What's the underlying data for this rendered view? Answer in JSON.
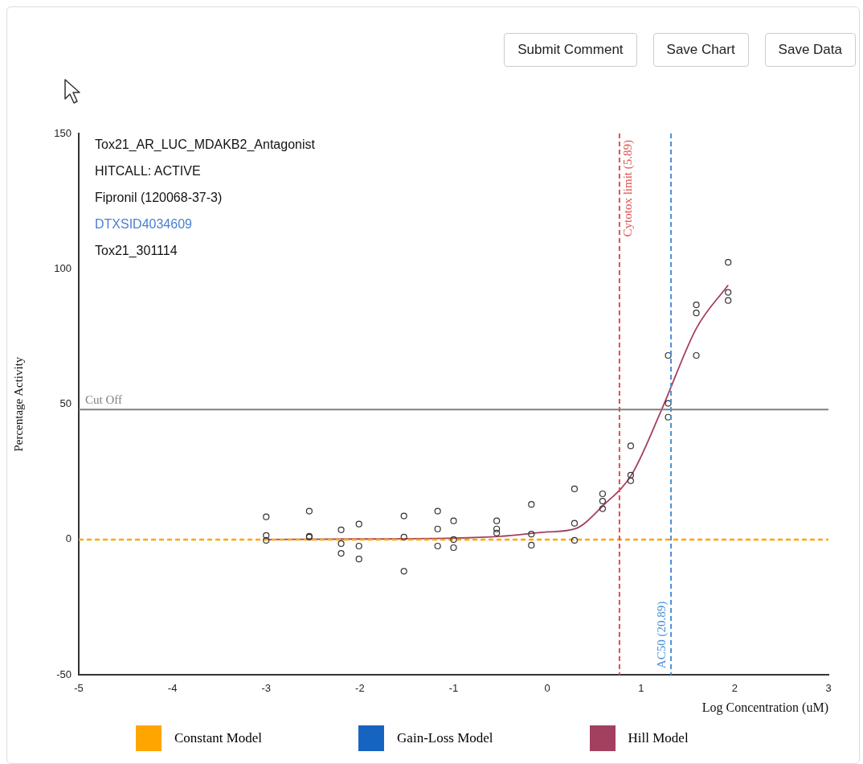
{
  "chart_data": {
    "type": "scatter",
    "title": "Tox21_AR_LUC_MDAKB2_Antagonist",
    "xlabel": "Log Concentration (uM)",
    "ylabel": "Percentage Activity",
    "annotations": [
      "HITCALL: ACTIVE",
      "Fipronil (120068-37-3)",
      "DTXSID4034609",
      "Tox21_301114",
      "Submit Comment",
      "Save Chart",
      "Save Data"
    ],
    "xlim": [
      -5,
      3
    ],
    "xticks": [
      -5,
      -4,
      -3,
      -2,
      -1,
      0,
      1,
      2,
      3
    ],
    "ylim": [
      -50,
      150
    ],
    "yticks": [
      -50,
      0,
      50,
      100,
      150
    ],
    "grid": false,
    "legend": "bottom",
    "series": [
      {
        "marker": "circle",
        "color": "#333333",
        "x": [
          -3,
          -3,
          -3,
          -2.54,
          -2.54,
          -2.54,
          -2.2,
          -2.2,
          -2.2,
          -2.01,
          -2.01,
          -2.01,
          -1.53,
          -1.53,
          -1.53,
          -1.17,
          -1.17,
          -1.17,
          -1,
          -1,
          -1,
          -0.54,
          -0.54,
          -0.54,
          -0.17,
          -0.17,
          -0.17,
          0.29,
          0.29,
          0.29,
          0.59,
          0.59,
          0.59,
          0.89,
          0.89,
          0.89,
          1.29,
          1.29,
          1.29,
          1.59,
          1.59,
          1.59,
          1.93,
          1.93,
          1.93
        ],
        "values": [
          8.4,
          1.5,
          -0.3,
          10.5,
          1.2,
          0.9,
          3.6,
          -1.5,
          -5.1,
          5.7,
          -2.4,
          -7.2,
          8.7,
          0.9,
          -11.7,
          10.5,
          3.9,
          -2.4,
          6.9,
          0,
          -3,
          6.9,
          3.9,
          2.4,
          13,
          2,
          -2.1,
          18.7,
          6,
          -0.3,
          16.9,
          14.2,
          11.4,
          34.6,
          23.8,
          21.7,
          68,
          50.3,
          45.2,
          86.7,
          83.7,
          68,
          102.4,
          91.3,
          88.3
        ]
      },
      {
        "type": "line",
        "name": "Constant Model",
        "color": "#ffa500",
        "line_style": "dashed",
        "x": [
          -5,
          3
        ],
        "values": [
          0,
          0
        ]
      },
      {
        "type": "line",
        "name": "Gain-Loss Model",
        "color": "#1565c0",
        "line_style": "solid"
      },
      {
        "type": "line",
        "name": "Hill Model",
        "color": "#a3405f",
        "line_style": "solid",
        "x": [
          -3,
          -2,
          -1,
          -0.5,
          0,
          0.3,
          0.6,
          0.9,
          1.22,
          1.59,
          1.93
        ],
        "values": [
          0,
          0.2,
          0.5,
          1.2,
          2.8,
          4,
          12.7,
          24,
          48,
          78,
          94
        ]
      }
    ],
    "ref_lines": [
      {
        "axis": "y",
        "value": 48,
        "label": "Cut Off",
        "color": "#808080",
        "line_style": "solid"
      },
      {
        "axis": "x",
        "value": 0.77,
        "label": "Cytotox limit (5.89)",
        "color": "#e05050",
        "line_style": "dashed"
      },
      {
        "axis": "x",
        "value": 1.32,
        "label": "AC50 (20.89)",
        "color": "#4a90d9",
        "line_style": "dashed"
      }
    ]
  }
}
